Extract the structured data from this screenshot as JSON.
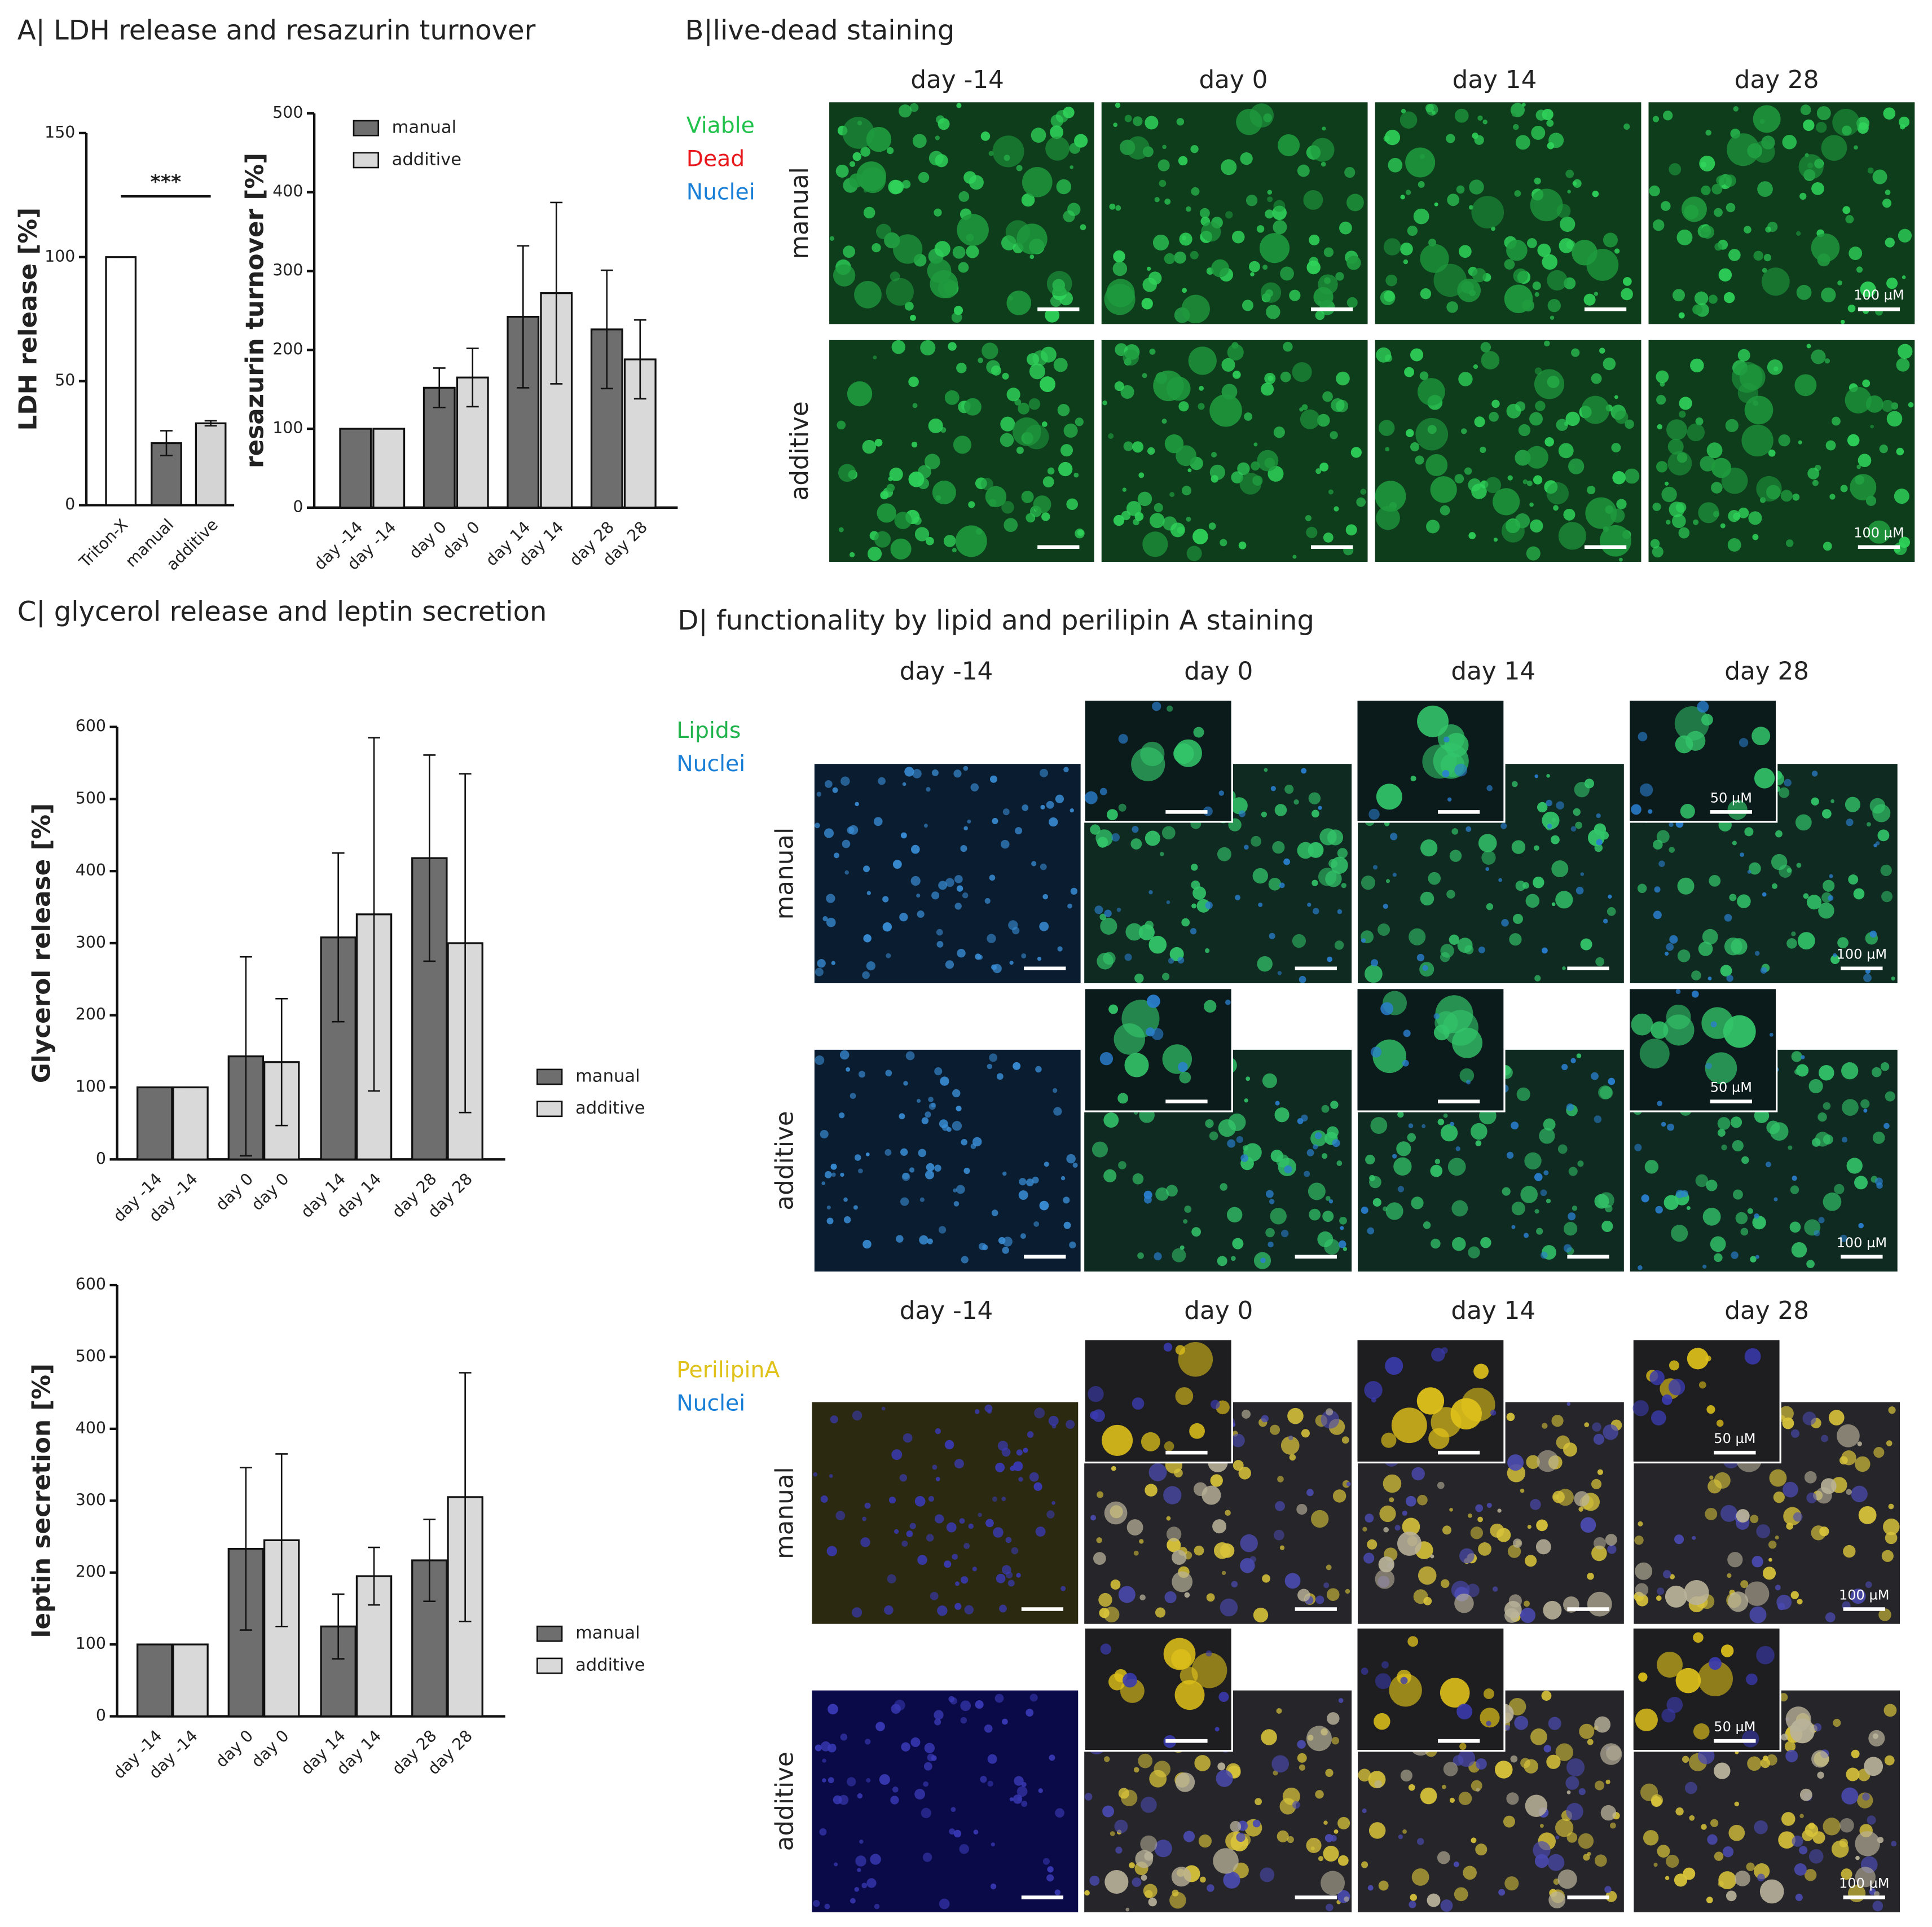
{
  "panels": {
    "A": "A| LDH release and resazurin turnover",
    "B": "B|live-dead staining",
    "C": "C| glycerol release and leptin secretion",
    "D": "D| functionality by lipid and perilipin A staining"
  },
  "live_dead": {
    "columns": [
      "day -14",
      "day 0",
      "day 14",
      "day 28"
    ],
    "rows": [
      "manual",
      "additive"
    ],
    "legend": [
      {
        "label": "Viable",
        "color": "#21c24c"
      },
      {
        "label": "Dead",
        "color": "#e8191d"
      },
      {
        "label": "Nuclei",
        "color": "#1a7fd6"
      }
    ],
    "scale_bar": "100 µM"
  },
  "lipid": {
    "columns": [
      "day -14",
      "day 0",
      "day 14",
      "day 28"
    ],
    "rows": [
      "manual",
      "additive"
    ],
    "legend": [
      {
        "label": "Lipids",
        "color": "#21b34c"
      },
      {
        "label": "Nuclei",
        "color": "#1a7fd6"
      }
    ],
    "scale_bar": "100 µM",
    "inset_scale_bar": "50 µM"
  },
  "perilipin": {
    "columns": [
      "day -14",
      "day 0",
      "day 14",
      "day 28"
    ],
    "rows": [
      "manual",
      "additive"
    ],
    "legend": [
      {
        "label": "PerilipinA",
        "color": "#e0c21a"
      },
      {
        "label": "Nuclei",
        "color": "#1a7fd6"
      }
    ],
    "scale_bar": "100 µM",
    "inset_scale_bar": "50 µM"
  },
  "chart_data": [
    {
      "type": "bar",
      "ylabel": "LDH release [%]",
      "categories": [
        "Triton-X",
        "manual",
        "additive"
      ],
      "values": [
        100,
        25,
        33
      ],
      "errors": [
        0,
        5,
        1
      ],
      "colors": [
        "#ffffff",
        "#6e6e6e",
        "#d4d4d4"
      ],
      "ylim": [
        0,
        150
      ],
      "yticks": [
        0,
        50,
        100,
        150
      ],
      "annotation": "***"
    },
    {
      "type": "bar",
      "ylabel": "resazurin turnover [%]",
      "categories": [
        "day -14",
        "day 0",
        "day 14",
        "day 28"
      ],
      "series": [
        {
          "name": "manual",
          "color": "#6e6e6e",
          "values": [
            100,
            152,
            242,
            226
          ],
          "errors": [
            0,
            25,
            90,
            75
          ]
        },
        {
          "name": "additive",
          "color": "#d9d9d9",
          "values": [
            100,
            165,
            272,
            188
          ],
          "errors": [
            0,
            37,
            115,
            50
          ]
        }
      ],
      "ylim": [
        0,
        500
      ],
      "yticks": [
        0,
        100,
        200,
        300,
        400,
        500
      ]
    },
    {
      "type": "bar",
      "ylabel": "Glycerol release [%]",
      "categories": [
        "day -14",
        "day 0",
        "day 14",
        "day 28"
      ],
      "series": [
        {
          "name": "manual",
          "color": "#6e6e6e",
          "values": [
            100,
            143,
            308,
            418
          ],
          "errors": [
            0,
            138,
            117,
            143
          ]
        },
        {
          "name": "additive",
          "color": "#d9d9d9",
          "values": [
            100,
            135,
            340,
            300
          ],
          "errors": [
            0,
            88,
            245,
            235
          ]
        }
      ],
      "ylim": [
        0,
        600
      ],
      "yticks": [
        0,
        100,
        200,
        300,
        400,
        500,
        600
      ]
    },
    {
      "type": "bar",
      "ylabel": "leptin secretion [%]",
      "categories": [
        "day -14",
        "day 0",
        "day 14",
        "day 28"
      ],
      "series": [
        {
          "name": "manual",
          "color": "#6e6e6e",
          "values": [
            100,
            233,
            125,
            217
          ],
          "errors": [
            0,
            113,
            45,
            57
          ]
        },
        {
          "name": "additive",
          "color": "#d9d9d9",
          "values": [
            100,
            245,
            195,
            305
          ],
          "errors": [
            0,
            120,
            40,
            173
          ]
        }
      ],
      "ylim": [
        0,
        600
      ],
      "yticks": [
        0,
        100,
        200,
        300,
        400,
        500,
        600
      ]
    }
  ]
}
